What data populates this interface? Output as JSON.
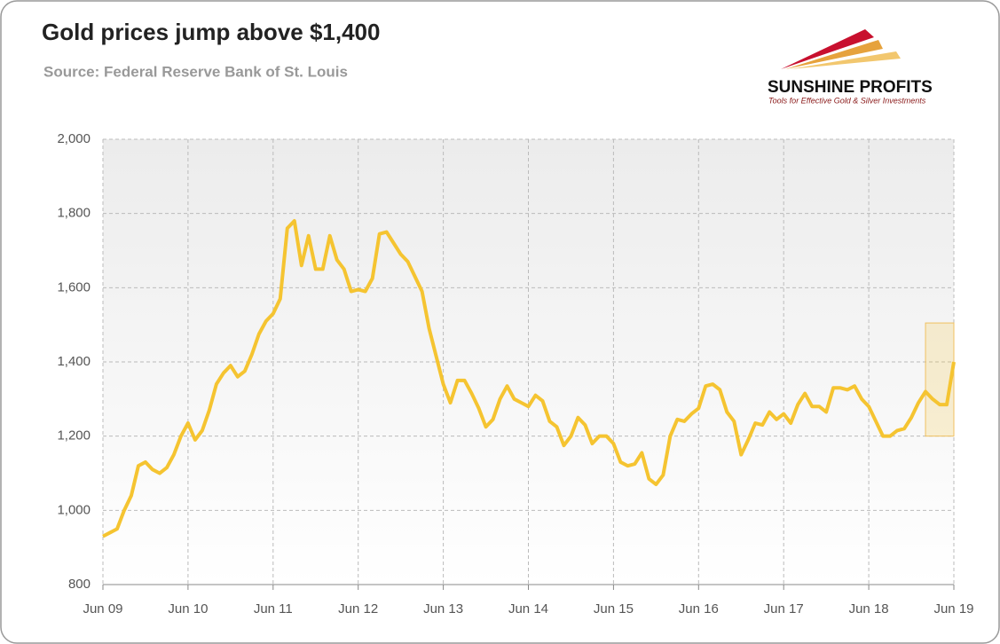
{
  "chart_data": {
    "type": "line",
    "title": "Gold prices jump above $1,400",
    "subtitle": "Source: Federal Reserve Bank of St. Louis",
    "logo": {
      "name": "SUNSHINE PROFITS",
      "tagline": "Tools for Effective Gold & Silver Investments"
    },
    "categories": [
      "Jun 09",
      null,
      null,
      null,
      null,
      null,
      null,
      null,
      null,
      null,
      null,
      null,
      "Jun 10",
      null,
      null,
      null,
      null,
      null,
      null,
      null,
      null,
      null,
      null,
      null,
      "Jun 11",
      null,
      null,
      null,
      null,
      null,
      null,
      null,
      null,
      null,
      null,
      null,
      "Jun 12",
      null,
      null,
      null,
      null,
      null,
      null,
      null,
      null,
      null,
      null,
      null,
      "Jun 13",
      null,
      null,
      null,
      null,
      null,
      null,
      null,
      null,
      null,
      null,
      null,
      "Jun 14",
      null,
      null,
      null,
      null,
      null,
      null,
      null,
      null,
      null,
      null,
      null,
      "Jun 15",
      null,
      null,
      null,
      null,
      null,
      null,
      null,
      null,
      null,
      null,
      null,
      "Jun 16",
      null,
      null,
      null,
      null,
      null,
      null,
      null,
      null,
      null,
      null,
      null,
      "Jun 17",
      null,
      null,
      null,
      null,
      null,
      null,
      null,
      null,
      null,
      null,
      null,
      "Jun 18",
      null,
      null,
      null,
      null,
      null,
      null,
      null,
      null,
      null,
      null,
      null,
      "Jun 19"
    ],
    "series": [
      {
        "name": "Gold price",
        "color": "#f5c431",
        "values": [
          930,
          940,
          950,
          1000,
          1040,
          1120,
          1130,
          1110,
          1100,
          1115,
          1150,
          1200,
          1235,
          1190,
          1215,
          1270,
          1340,
          1370,
          1390,
          1360,
          1375,
          1420,
          1475,
          1510,
          1530,
          1570,
          1760,
          1780,
          1660,
          1740,
          1650,
          1650,
          1740,
          1675,
          1650,
          1590,
          1595,
          1590,
          1625,
          1745,
          1750,
          1720,
          1690,
          1670,
          1630,
          1590,
          1490,
          1415,
          1340,
          1290,
          1350,
          1350,
          1315,
          1275,
          1225,
          1245,
          1300,
          1335,
          1300,
          1290,
          1280,
          1310,
          1295,
          1240,
          1225,
          1175,
          1200,
          1250,
          1230,
          1180,
          1200,
          1200,
          1180,
          1130,
          1120,
          1125,
          1155,
          1085,
          1070,
          1095,
          1200,
          1245,
          1240,
          1260,
          1275,
          1335,
          1340,
          1325,
          1265,
          1240,
          1150,
          1190,
          1235,
          1230,
          1265,
          1245,
          1260,
          1235,
          1285,
          1315,
          1280,
          1280,
          1265,
          1330,
          1330,
          1325,
          1335,
          1300,
          1280,
          1240,
          1200,
          1200,
          1215,
          1220,
          1250,
          1290,
          1320,
          1300,
          1285,
          1285,
          1400
        ]
      }
    ],
    "highlight_ylim": [
      1200,
      1505
    ],
    "ylim": [
      800,
      2000
    ],
    "yticks": [
      {
        "value": 800,
        "label": "800"
      },
      {
        "value": 1000,
        "label": "1,000"
      },
      {
        "value": 1200,
        "label": "1,200"
      },
      {
        "value": 1400,
        "label": "1,400"
      },
      {
        "value": 1600,
        "label": "1,600"
      },
      {
        "value": 1800,
        "label": "1,800"
      },
      {
        "value": 2000,
        "label": "2,000"
      }
    ],
    "grid": true
  }
}
